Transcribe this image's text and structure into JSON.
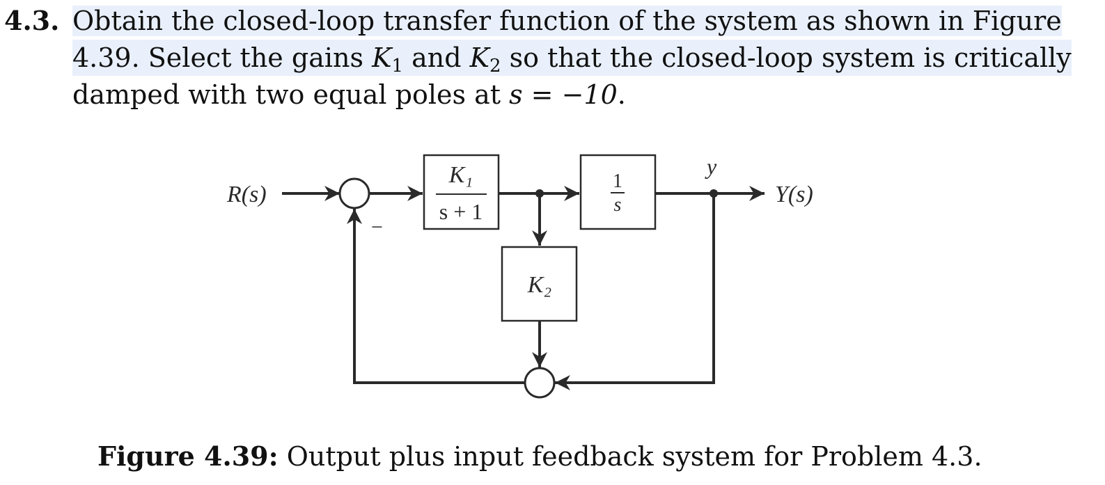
{
  "problem": {
    "number": "4.3.",
    "line1": "Obtain the closed-loop transfer function of the system as shown in Figure",
    "line2_a": "4.39. Select the gains ",
    "k1_base": "K",
    "k1_sub": "1",
    "line2_b": " and ",
    "k2_base": "K",
    "k2_sub": "2",
    "line2_c": " so that the closed-loop system is critically",
    "line3_a": "damped with two equal poles at ",
    "line3_math": "s = −10",
    "line3_b": "."
  },
  "diagram": {
    "input_label": "R(s)",
    "output_label": "Y(s)",
    "signal_y_label": "y",
    "minus_sign": "−",
    "block1": {
      "numerator": "K₁",
      "denominator": "s + 1"
    },
    "block2": {
      "numerator": "1",
      "denominator": "s"
    },
    "block3": {
      "label": "K₂"
    }
  },
  "caption": {
    "label": "Figure 4.39:",
    "text": " Output plus input feedback system for Problem 4.3."
  },
  "colors": {
    "text": "#111111",
    "line": "#2a2a2a",
    "highlight": "#e9f0fb"
  }
}
